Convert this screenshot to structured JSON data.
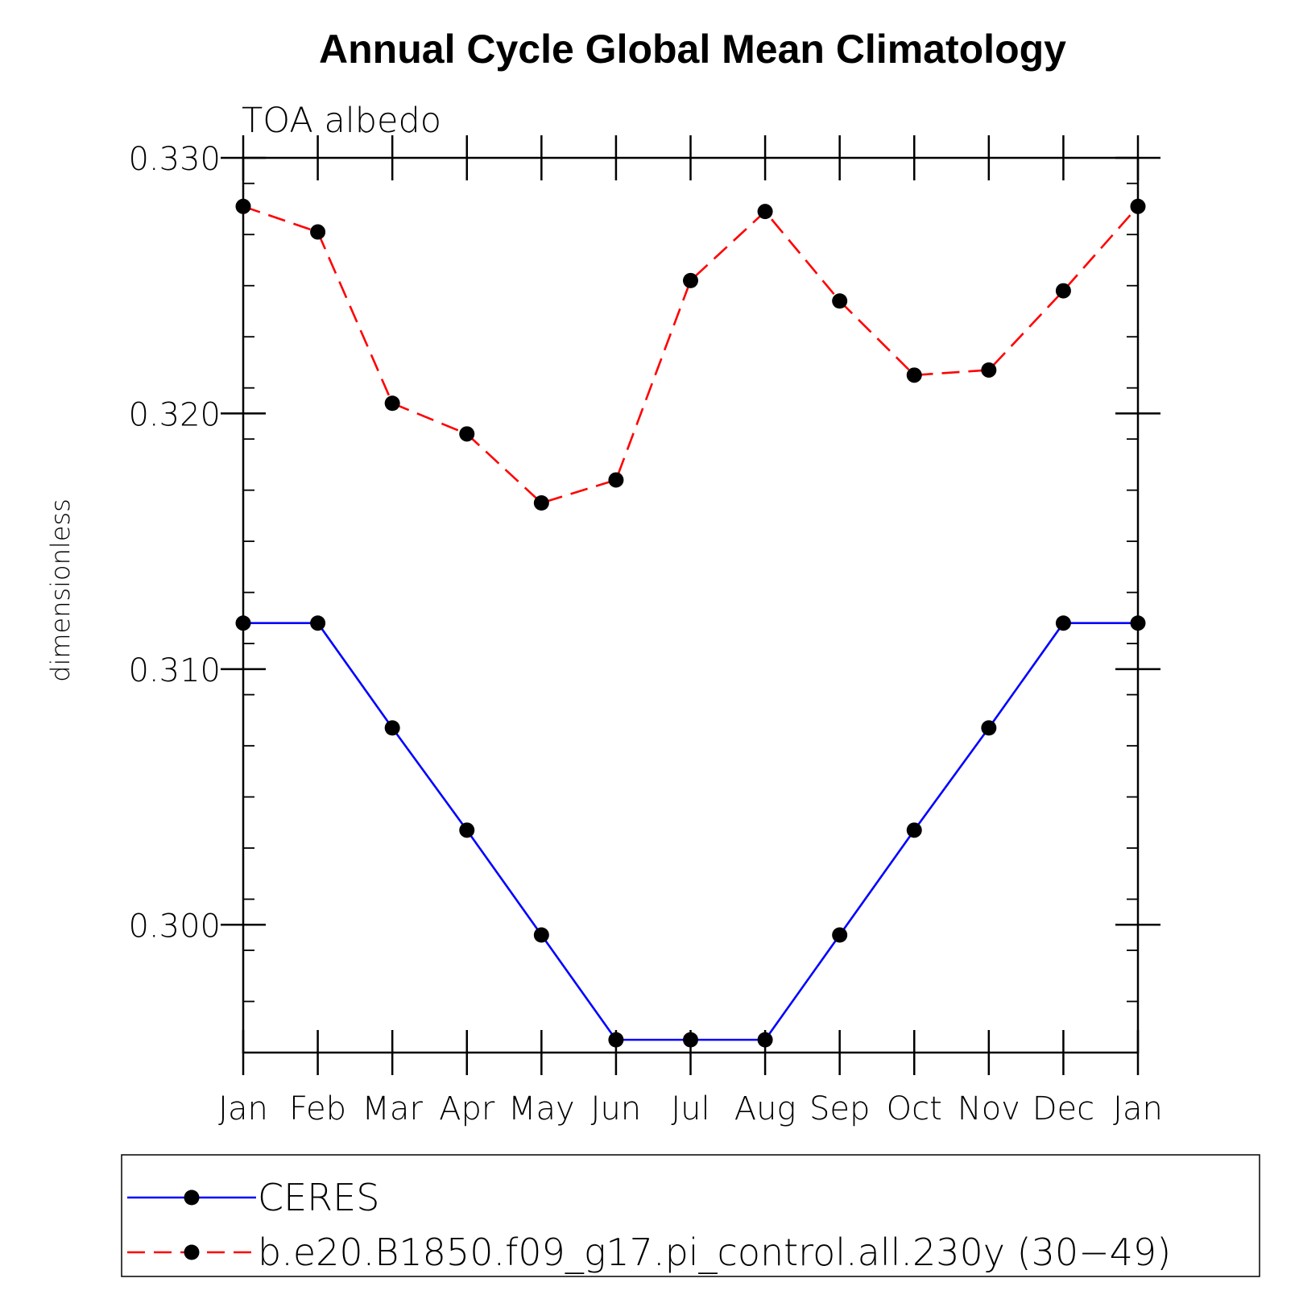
{
  "chart_data": {
    "type": "line",
    "title": "Annual Cycle Global Mean Climatology",
    "subtitle": "TOA albedo",
    "xlabel": "",
    "ylabel": "dimensionless",
    "categories": [
      "Jan",
      "Feb",
      "Mar",
      "Apr",
      "May",
      "Jun",
      "Jul",
      "Aug",
      "Sep",
      "Oct",
      "Nov",
      "Dec",
      "Jan"
    ],
    "ylim": [
      0.295,
      0.33
    ],
    "yticks": [
      0.3,
      0.31,
      0.32,
      0.33
    ],
    "ytick_labels": [
      "0.300",
      "0.310",
      "0.320",
      "0.330"
    ],
    "grid": false,
    "legend_position": "bottom",
    "series": [
      {
        "name": "CERES",
        "color": "#0000ff",
        "dash": "solid",
        "marker": "filled-circle",
        "values": [
          0.3118,
          0.3118,
          0.3077,
          0.3037,
          0.2996,
          0.2955,
          0.2955,
          0.2955,
          0.2996,
          0.3037,
          0.3077,
          0.3118,
          0.3118
        ]
      },
      {
        "name": "b.e20.B1850.f09_g17.pi_control.all.230y (30−49)",
        "color": "#ff0000",
        "dash": "dashed",
        "marker": "filled-circle",
        "values": [
          0.3281,
          0.3271,
          0.3204,
          0.3192,
          0.3165,
          0.3174,
          0.3252,
          0.3279,
          0.3244,
          0.3215,
          0.3217,
          0.3248,
          0.3281
        ]
      }
    ]
  }
}
